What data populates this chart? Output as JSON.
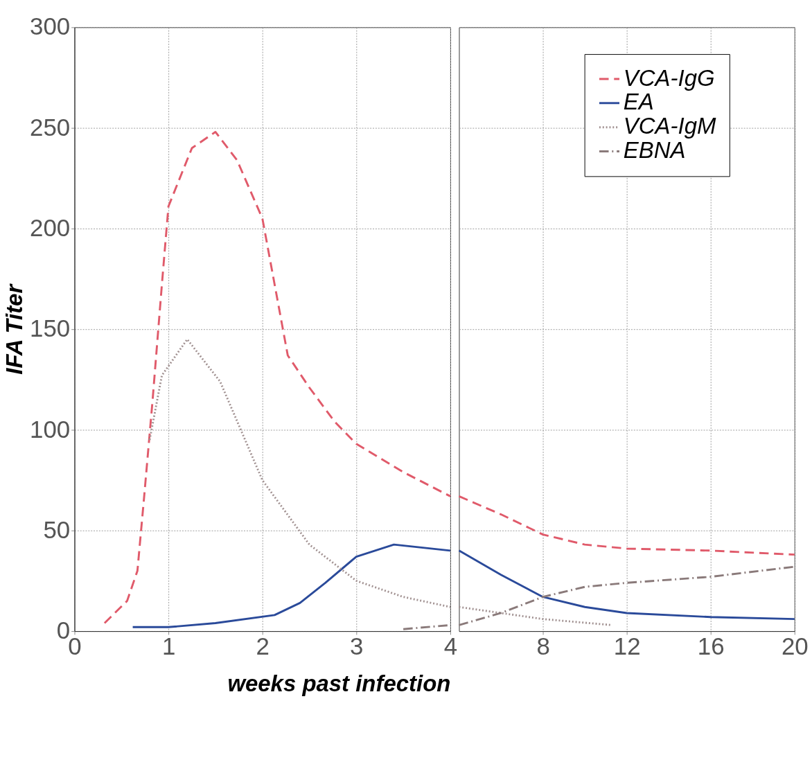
{
  "chart_data": [
    {
      "type": "line",
      "xlabel": "weeks past infection",
      "ylabel": "IFA Titer",
      "xlim": [
        0,
        4
      ],
      "xticks": [
        0,
        1,
        2,
        3,
        4
      ],
      "ylim": [
        0,
        300
      ],
      "yticks": [
        0,
        50,
        100,
        150,
        200,
        250,
        300
      ],
      "grid": true,
      "legend": "top right",
      "marker": "none",
      "series": [
        {
          "name": "VCA-IgG",
          "color": "#e05a6a",
          "line_style": "dashed",
          "x": [
            0.32,
            0.56,
            0.67,
            0.74,
            0.83,
            0.93,
            1.0,
            1.25,
            1.5,
            1.73,
            2.0,
            2.27,
            2.5,
            2.77,
            3.0,
            3.5,
            4.0
          ],
          "values": [
            4,
            15,
            30,
            66,
            114,
            172,
            211,
            240,
            248,
            234,
            205,
            137,
            121,
            104,
            93,
            79,
            67
          ]
        },
        {
          "name": "EA",
          "color": "#2a4a9a",
          "line_style": "solid",
          "x": [
            0.62,
            1.0,
            1.5,
            2.13,
            2.4,
            2.67,
            3.0,
            3.4,
            4.0
          ],
          "values": [
            2,
            2,
            4,
            8,
            14,
            24,
            37,
            43,
            40
          ]
        },
        {
          "name": "VCA-IgM",
          "color": "#a09090",
          "line_style": "dotted",
          "x": [
            0.8,
            0.93,
            1.2,
            1.55,
            2.0,
            2.5,
            3.0,
            3.5,
            4.0
          ],
          "values": [
            95,
            127,
            145,
            124,
            75,
            43,
            25,
            17,
            12
          ]
        },
        {
          "name": "EBNA",
          "color": "#8a7a7a",
          "line_style": "dashdot",
          "x": [
            3.5,
            4.0
          ],
          "values": [
            1,
            3
          ]
        }
      ]
    },
    {
      "type": "line",
      "xlim": [
        4,
        20
      ],
      "xticks": [
        8,
        12,
        16,
        20
      ],
      "ylim": [
        0,
        300
      ],
      "tick_labels": "x",
      "grid": true,
      "legend": "top right",
      "marker": "none",
      "series": [
        {
          "name": "VCA-IgG",
          "color": "#e05a6a",
          "line_style": "dashed",
          "x": [
            4.0,
            6.0,
            8.0,
            10,
            12,
            16,
            20
          ],
          "values": [
            67,
            58,
            48,
            43,
            41,
            40,
            38
          ]
        },
        {
          "name": "EA",
          "color": "#2a4a9a",
          "line_style": "solid",
          "x": [
            4.0,
            6.0,
            8,
            10,
            12,
            16,
            20
          ],
          "values": [
            40,
            28,
            17,
            12,
            9,
            7,
            6
          ]
        },
        {
          "name": "VCA-IgM",
          "color": "#a09090",
          "line_style": "dotted",
          "x": [
            4.0,
            8,
            11.3
          ],
          "values": [
            12,
            6,
            3
          ]
        },
        {
          "name": "EBNA",
          "color": "#8a7a7a",
          "line_style": "dashdot",
          "x": [
            4.0,
            6,
            8,
            10,
            12,
            16,
            20
          ],
          "values": [
            3,
            9,
            17,
            22,
            24,
            27,
            32
          ]
        }
      ]
    }
  ]
}
